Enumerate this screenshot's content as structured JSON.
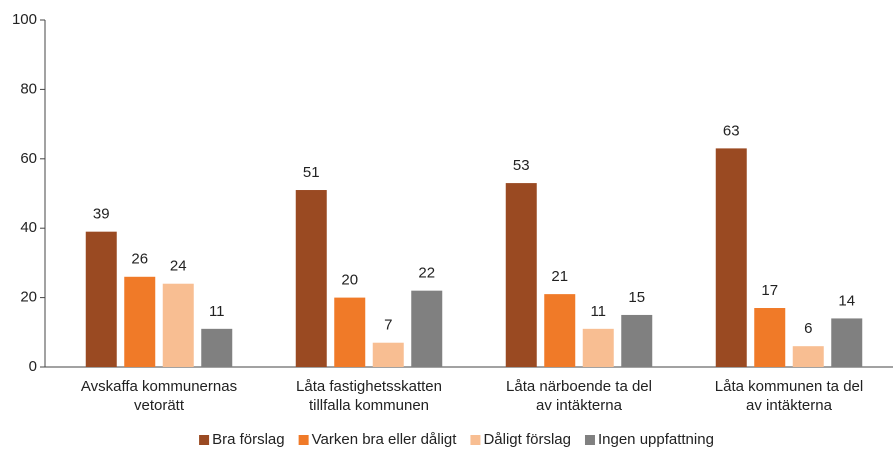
{
  "chart_data": {
    "type": "bar",
    "categories": [
      "Avskaffa kommunernas\nvetorätt",
      "Låta fastighetsskatten\ntillfalla kommunen",
      "Låta närboende ta del\nav intäkterna",
      "Låta kommunen ta del\nav intäkterna"
    ],
    "series": [
      {
        "name": "Bra förslag",
        "color": "#9a4a22",
        "values": [
          39,
          51,
          53,
          63
        ]
      },
      {
        "name": "Varken bra eller dåligt",
        "color": "#f07a28",
        "values": [
          26,
          20,
          21,
          17
        ]
      },
      {
        "name": "Dåligt förslag",
        "color": "#f8be92",
        "values": [
          24,
          7,
          11,
          6
        ]
      },
      {
        "name": "Ingen uppfattning",
        "color": "#808080",
        "values": [
          11,
          22,
          15,
          14
        ]
      }
    ],
    "ylim": [
      0,
      100
    ],
    "yticks": [
      0,
      20,
      40,
      60,
      80,
      100
    ],
    "legend": "bottom"
  }
}
